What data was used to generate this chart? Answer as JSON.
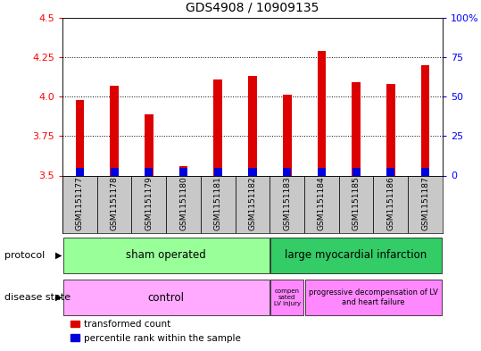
{
  "title": "GDS4908 / 10909135",
  "samples": [
    "GSM1151177",
    "GSM1151178",
    "GSM1151179",
    "GSM1151180",
    "GSM1151181",
    "GSM1151182",
    "GSM1151183",
    "GSM1151184",
    "GSM1151185",
    "GSM1151186",
    "GSM1151187"
  ],
  "transformed_count": [
    3.98,
    4.07,
    3.89,
    3.56,
    4.11,
    4.13,
    4.01,
    4.29,
    4.09,
    4.08,
    4.2
  ],
  "base_value": 3.5,
  "ylim": [
    3.5,
    4.5
  ],
  "yticks": [
    3.5,
    3.75,
    4.0,
    4.25,
    4.5
  ],
  "right_yticks": [
    0,
    25,
    50,
    75,
    100
  ],
  "bar_color_red": "#dd0000",
  "bar_color_blue": "#0000dd",
  "bg_color": "#c8c8c8",
  "protocol_sham_color": "#99ff99",
  "protocol_infarction_color": "#33cc66",
  "disease_control_color": "#ffaaff",
  "disease_compen_color": "#ff88ff",
  "disease_prog_color": "#ff88ff",
  "protocol_sham_label": "sham operated",
  "protocol_infarction_label": "large myocardial infarction",
  "disease_control_label": "control",
  "disease_compen_label": "compen\nsated\nLV injury",
  "disease_prog_label": "progressive decompensation of LV\nand heart failure",
  "protocol_sham_samples": 6,
  "protocol_infarction_samples": 5,
  "disease_control_samples": 6,
  "disease_compen_samples": 1,
  "disease_prog_samples": 4,
  "legend_red_label": "transformed count",
  "legend_blue_label": "percentile rank within the sample",
  "bar_width": 0.25,
  "blue_bar_height": 0.05
}
